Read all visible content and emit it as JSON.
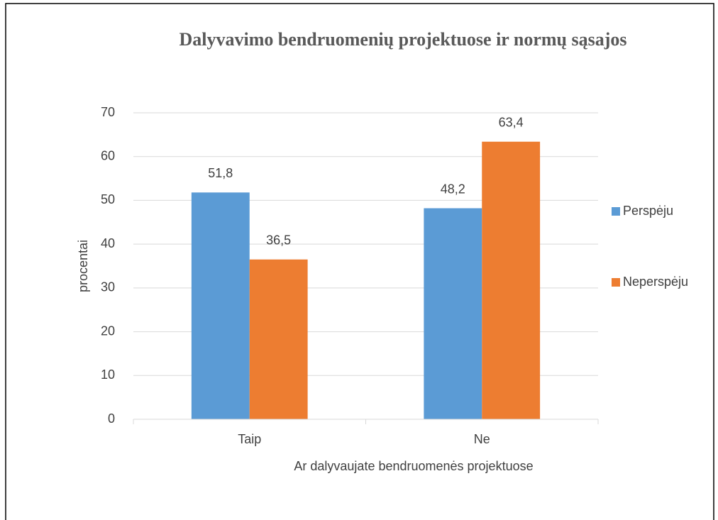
{
  "chart_data": {
    "type": "bar",
    "title": "Dalyvavimo bendruomenių projektuose ir normų sąsajos",
    "x_label": "Ar dalyvaujate bendruomenės projektuose",
    "y_label": "procentai",
    "categories": [
      "Taip",
      "Ne"
    ],
    "series": [
      {
        "name": "Perspėju",
        "color": "#5b9bd5",
        "values": [
          51.8,
          48.2
        ],
        "value_labels": [
          "51,8",
          "48,2"
        ]
      },
      {
        "name": "Neperspėju",
        "color": "#ed7d31",
        "values": [
          36.5,
          63.4
        ],
        "value_labels": [
          "36,5",
          "63,4"
        ]
      }
    ],
    "ylim": [
      0,
      70
    ],
    "yticks": [
      0,
      10,
      20,
      30,
      40,
      50,
      60,
      70
    ],
    "grid": true,
    "legend": "right"
  }
}
